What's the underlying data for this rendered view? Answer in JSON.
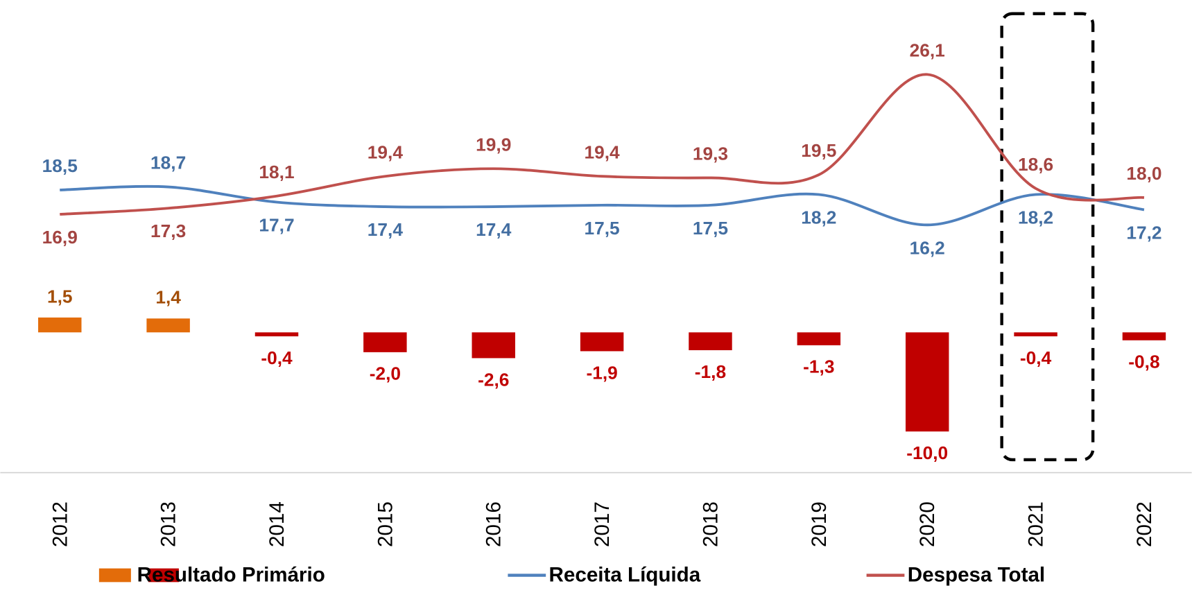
{
  "chart_data": {
    "type": "bar+line",
    "categories": [
      "2012",
      "2013",
      "2014",
      "2015",
      "2016",
      "2017",
      "2018",
      "2019",
      "2020",
      "2021",
      "2022"
    ],
    "series": [
      {
        "name": "Resultado Primário",
        "type": "bar",
        "color": "#c00000",
        "positive_color": "#e36c0a",
        "values": [
          1.5,
          1.4,
          -0.4,
          -2.0,
          -2.6,
          -1.9,
          -1.8,
          -1.3,
          -10.0,
          -0.4,
          -0.8
        ],
        "value_labels": [
          "1,5",
          "1,4",
          "-0,4",
          "-2,0",
          "-2,6",
          "-1,9",
          "-1,8",
          "-1,3",
          "-10,0",
          "-0,4",
          "-0,8"
        ]
      },
      {
        "name": "Receita Líquida",
        "type": "line",
        "axis": "y2",
        "color": "#4f81bd",
        "values": [
          18.5,
          18.7,
          17.7,
          17.4,
          17.4,
          17.5,
          17.5,
          18.2,
          16.2,
          18.2,
          17.2
        ],
        "value_labels": [
          "18,5",
          "18,7",
          "17,7",
          "17,4",
          "17,4",
          "17,5",
          "17,5",
          "18,2",
          "16,2",
          "18,2",
          "17,2"
        ]
      },
      {
        "name": "Despesa Total",
        "type": "line",
        "axis": "y2",
        "color": "#c0504d",
        "values": [
          16.9,
          17.3,
          18.1,
          19.4,
          19.9,
          19.4,
          19.3,
          19.5,
          26.1,
          18.6,
          18.0
        ],
        "value_labels": [
          "16,9",
          "17,3",
          "18,1",
          "19,4",
          "19,9",
          "19,4",
          "19,3",
          "19,5",
          "26,1",
          "18,6",
          "18,0"
        ]
      }
    ],
    "ylim": [
      -14,
      32
    ],
    "y2lim": [
      0,
      30
    ],
    "legend": "bottom"
  }
}
